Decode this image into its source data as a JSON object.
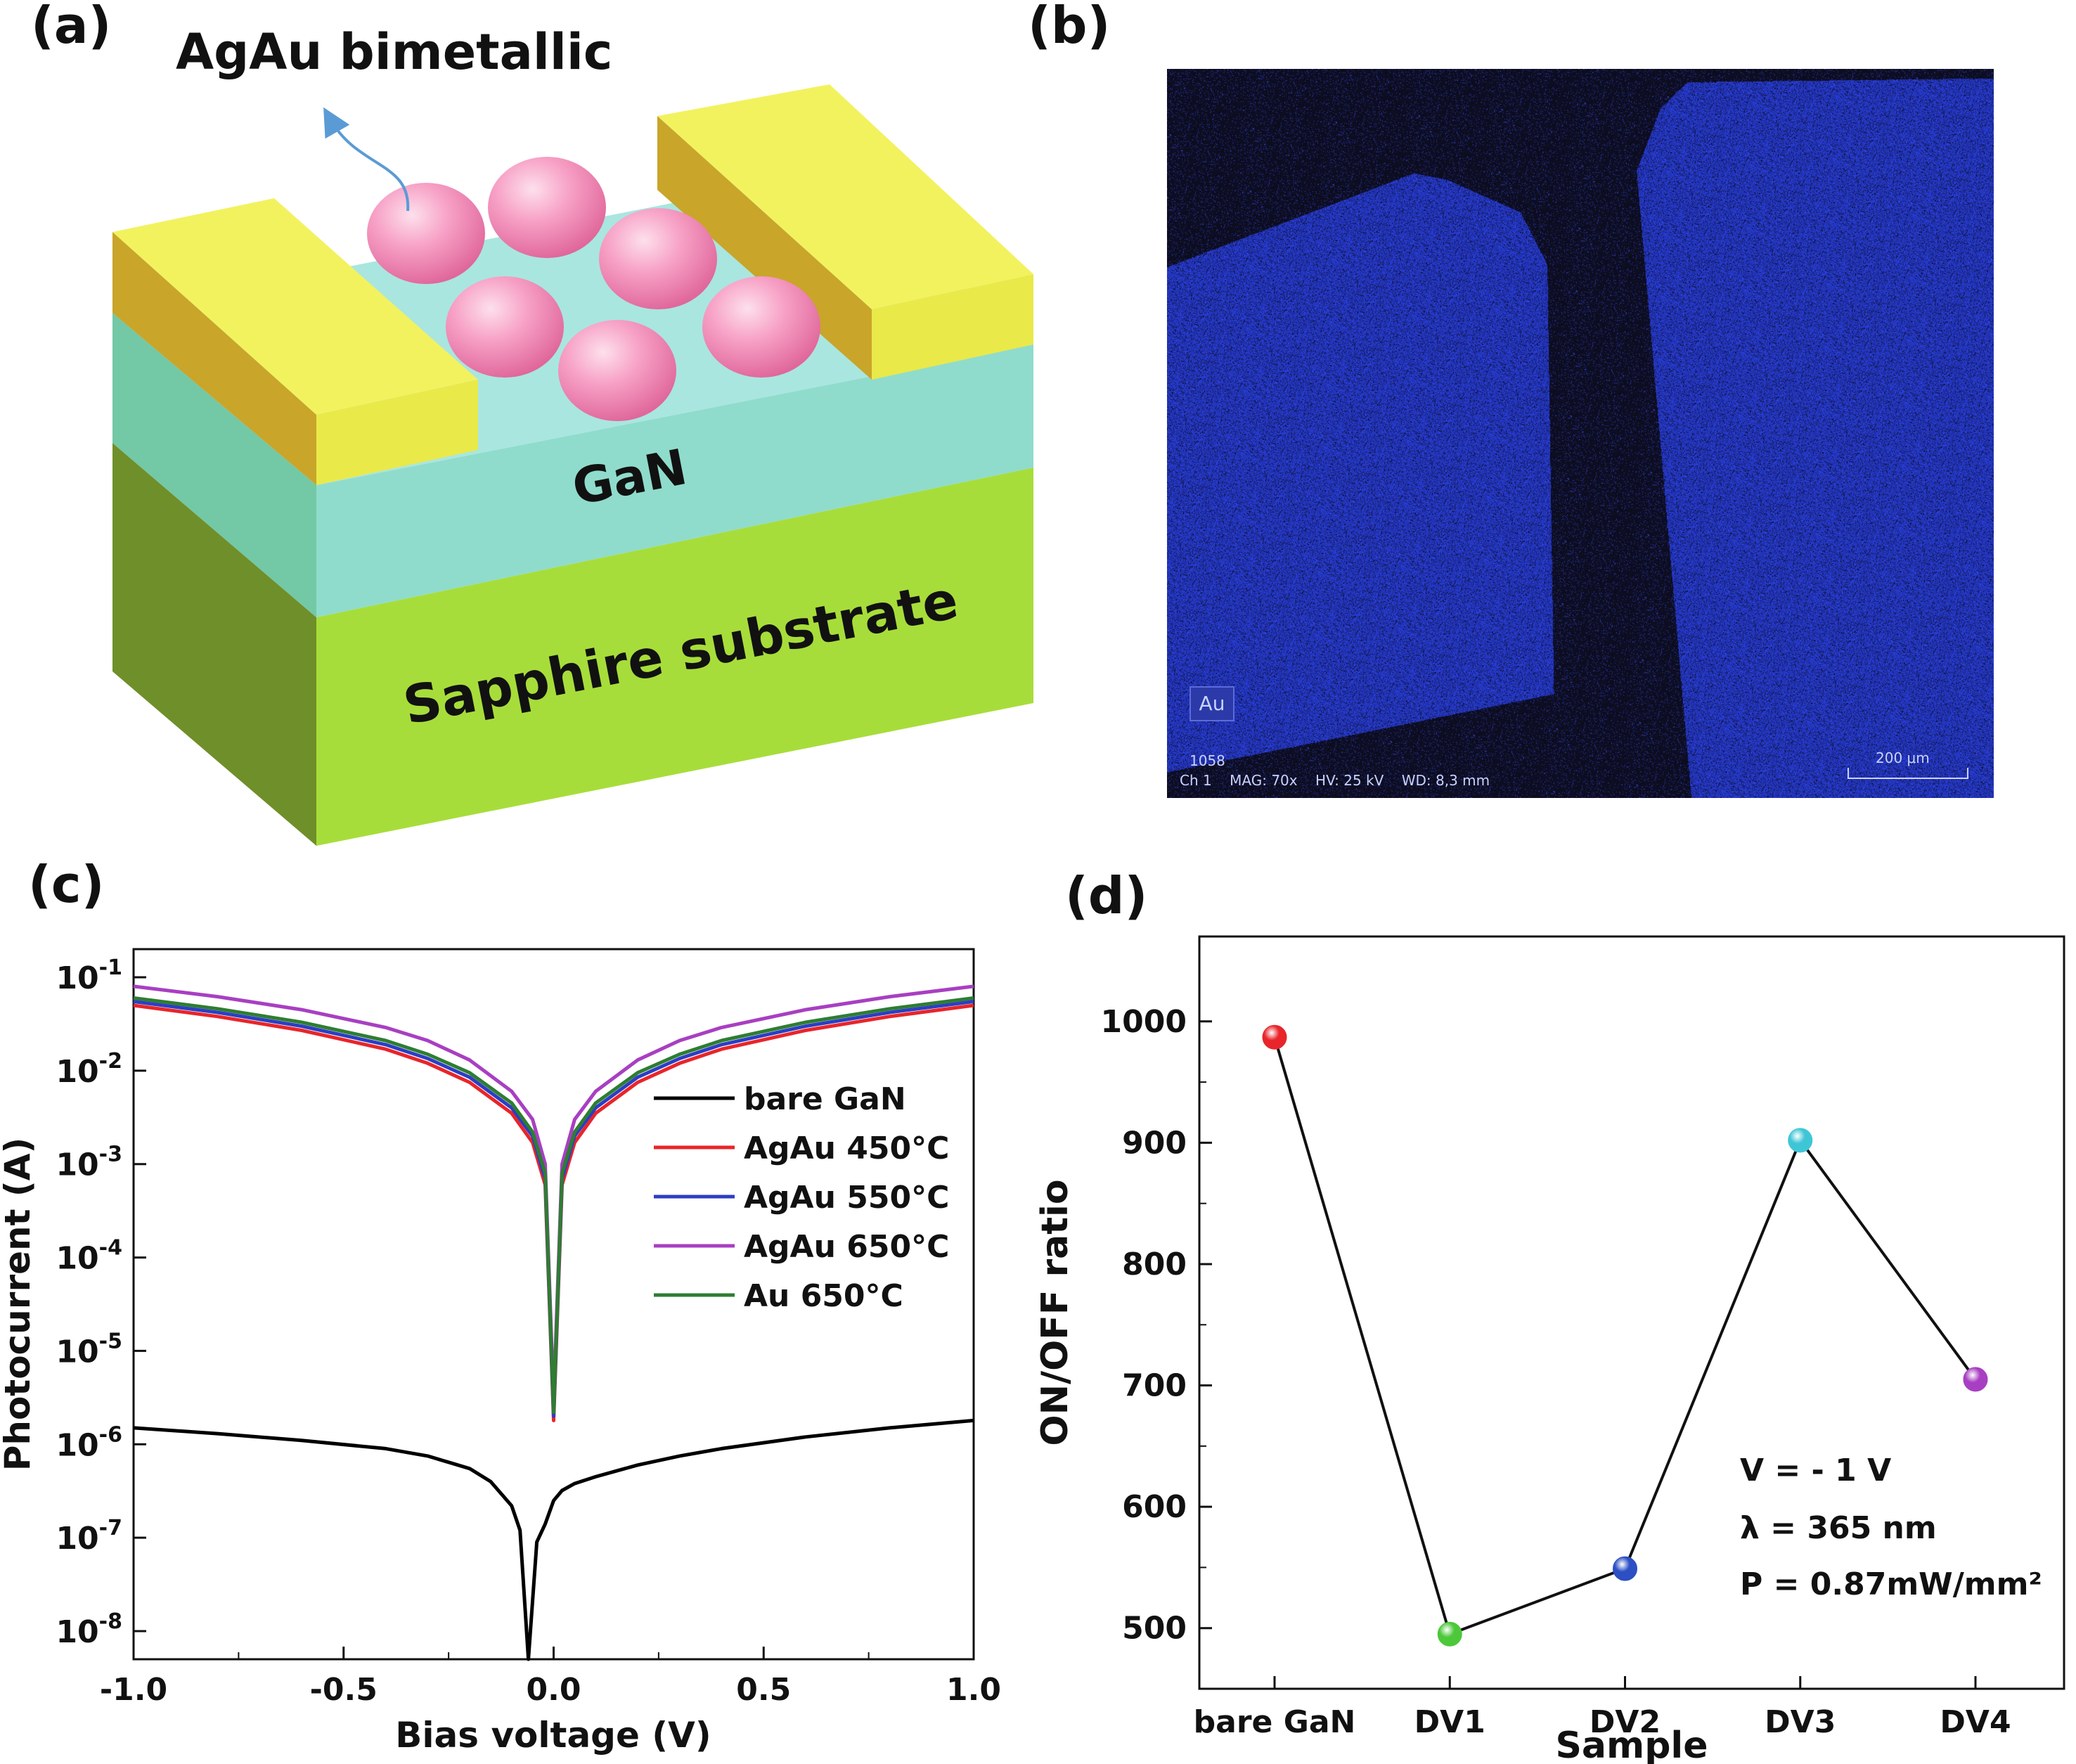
{
  "panels": {
    "a": {
      "label": "(a)",
      "arrow_label": "AgAu bimetallic",
      "gan_label": "GaN",
      "substrate_label": "Sapphire substrate",
      "colors": {
        "electrode": "#e9e94a",
        "gan": "#8fdccc",
        "substrate": "#a7dd3a",
        "particles": "#f7a1c6"
      }
    },
    "b": {
      "label": "(b)",
      "element_tag": "Au",
      "frame_no": "1058",
      "info_line": "Ch 1    MAG: 70x    HV: 25 kV    WD: 8,3 mm",
      "scale_bar": "200 μm",
      "colors": {
        "background": "#0b0b1a",
        "au": "#3a4fd6"
      }
    },
    "c": {
      "label": "(c)",
      "xlabel": "Bias voltage (V)",
      "ylabel": "Photocurrent (A)",
      "legend": [
        {
          "name": "bare GaN",
          "color": "#000000"
        },
        {
          "name": "AgAu 450°C",
          "color": "#e8252a"
        },
        {
          "name": "AgAu 550°C",
          "color": "#2c3ec4"
        },
        {
          "name": "AgAu 650°C",
          "color": "#a83fc2"
        },
        {
          "name": "Au 650°C",
          "color": "#2e7d32"
        }
      ]
    },
    "d": {
      "label": "(d)",
      "xlabel": "Sample",
      "ylabel": "ON/OFF ratio",
      "annotation": [
        "V = - 1 V",
        "λ = 365 nm",
        "P = 0.87mW/mm²"
      ]
    }
  },
  "chart_data": [
    {
      "type": "line",
      "panel": "c",
      "xlabel": "Bias voltage (V)",
      "ylabel": "Photocurrent (A)",
      "xlim": [
        -1.0,
        1.0
      ],
      "ylim": [
        5e-09,
        0.2
      ],
      "y_scale": "log",
      "x_ticks": [
        "-1.0",
        "-0.5",
        "0.0",
        "0.5",
        "1.0"
      ],
      "y_ticks": [
        "10-8",
        "10-7",
        "10-6",
        "10-5",
        "10-4",
        "10-3",
        "10-2",
        "10-1"
      ],
      "legend_position": "right",
      "series": [
        {
          "name": "bare GaN",
          "color": "#000000",
          "x": [
            -1.0,
            -0.8,
            -0.6,
            -0.4,
            -0.3,
            -0.2,
            -0.15,
            -0.1,
            -0.08,
            -0.06,
            -0.04,
            -0.02,
            0.0,
            0.02,
            0.05,
            0.1,
            0.2,
            0.3,
            0.4,
            0.6,
            0.8,
            1.0
          ],
          "y": [
            1.5e-06,
            1.3e-06,
            1.1e-06,
            9e-07,
            7.5e-07,
            5.5e-07,
            4e-07,
            2.2e-07,
            1.2e-07,
            5e-09,
            9e-08,
            1.4e-07,
            2.5e-07,
            3.2e-07,
            3.8e-07,
            4.5e-07,
            6e-07,
            7.5e-07,
            9e-07,
            1.2e-06,
            1.5e-06,
            1.8e-06
          ]
        },
        {
          "name": "AgAu 450°C",
          "color": "#e8252a",
          "x": [
            -1.0,
            -0.8,
            -0.6,
            -0.4,
            -0.3,
            -0.2,
            -0.1,
            -0.05,
            -0.02,
            0.0,
            0.02,
            0.05,
            0.1,
            0.2,
            0.3,
            0.4,
            0.6,
            0.8,
            1.0
          ],
          "y": [
            0.05,
            0.038,
            0.027,
            0.017,
            0.012,
            0.0075,
            0.0035,
            0.0017,
            0.0006,
            1.8e-06,
            0.0006,
            0.0017,
            0.0035,
            0.0075,
            0.012,
            0.017,
            0.027,
            0.038,
            0.05
          ]
        },
        {
          "name": "AgAu 550°C",
          "color": "#2c3ec4",
          "x": [
            -1.0,
            -0.8,
            -0.6,
            -0.4,
            -0.3,
            -0.2,
            -0.1,
            -0.05,
            -0.02,
            0.0,
            0.02,
            0.05,
            0.1,
            0.2,
            0.3,
            0.4,
            0.6,
            0.8,
            1.0
          ],
          "y": [
            0.055,
            0.042,
            0.03,
            0.019,
            0.0135,
            0.0085,
            0.004,
            0.002,
            0.0007,
            2e-06,
            0.0007,
            0.002,
            0.004,
            0.0085,
            0.0135,
            0.019,
            0.03,
            0.042,
            0.055
          ]
        },
        {
          "name": "AgAu 650°C",
          "color": "#a83fc2",
          "x": [
            -1.0,
            -0.8,
            -0.6,
            -0.4,
            -0.3,
            -0.2,
            -0.1,
            -0.05,
            -0.02,
            0.0,
            0.02,
            0.05,
            0.1,
            0.2,
            0.3,
            0.4,
            0.6,
            0.8,
            1.0
          ],
          "y": [
            0.08,
            0.062,
            0.045,
            0.029,
            0.021,
            0.013,
            0.006,
            0.003,
            0.001,
            3e-06,
            0.001,
            0.003,
            0.006,
            0.013,
            0.021,
            0.029,
            0.045,
            0.062,
            0.08
          ]
        },
        {
          "name": "Au 650°C",
          "color": "#2e7d32",
          "x": [
            -1.0,
            -0.8,
            -0.6,
            -0.4,
            -0.3,
            -0.2,
            -0.1,
            -0.05,
            -0.02,
            0.0,
            0.02,
            0.05,
            0.1,
            0.2,
            0.3,
            0.4,
            0.6,
            0.8,
            1.0
          ],
          "y": [
            0.06,
            0.046,
            0.033,
            0.021,
            0.015,
            0.0095,
            0.0045,
            0.0022,
            0.0008,
            2.2e-06,
            0.0008,
            0.0022,
            0.0045,
            0.0095,
            0.015,
            0.021,
            0.033,
            0.046,
            0.06
          ]
        }
      ]
    },
    {
      "type": "line",
      "panel": "d",
      "xlabel": "Sample",
      "ylabel": "ON/OFF ratio",
      "categories": [
        "bare GaN",
        "DV1",
        "DV2",
        "DV3",
        "DV4"
      ],
      "values": [
        987,
        495,
        549,
        902,
        705
      ],
      "point_colors": [
        "#e8252a",
        "#4cc83a",
        "#2c4fc4",
        "#3fc6d6",
        "#a83fc2"
      ],
      "ylim": [
        450,
        1070
      ],
      "y_ticks": [
        500,
        600,
        700,
        800,
        900,
        1000
      ]
    }
  ]
}
